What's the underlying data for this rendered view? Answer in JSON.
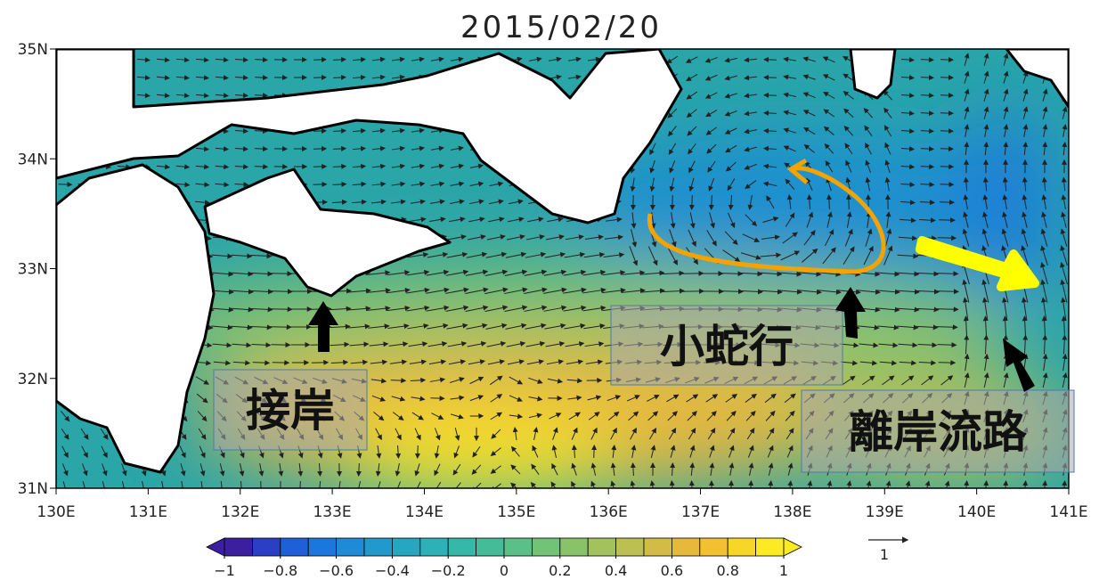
{
  "title": "2015/02/20",
  "lon_range": [
    130,
    141
  ],
  "lat_range": [
    31,
    35
  ],
  "lon_ticks": [
    {
      "value": 130,
      "label": "130E"
    },
    {
      "value": 131,
      "label": "131E"
    },
    {
      "value": 132,
      "label": "132E"
    },
    {
      "value": 133,
      "label": "133E"
    },
    {
      "value": 134,
      "label": "134E"
    },
    {
      "value": 135,
      "label": "135E"
    },
    {
      "value": 136,
      "label": "136E"
    },
    {
      "value": 137,
      "label": "137E"
    },
    {
      "value": 138,
      "label": "138E"
    },
    {
      "value": 139,
      "label": "139E"
    },
    {
      "value": 140,
      "label": "140E"
    },
    {
      "value": 141,
      "label": "141E"
    }
  ],
  "lat_ticks": [
    {
      "value": 35,
      "label": "35N"
    },
    {
      "value": 34,
      "label": "34N"
    },
    {
      "value": 33,
      "label": "33N"
    },
    {
      "value": 32,
      "label": "32N"
    },
    {
      "value": 31,
      "label": "31N"
    }
  ],
  "colorbar": {
    "range": [
      -1,
      1
    ],
    "ticks": [
      {
        "value": -1,
        "label": "−1"
      },
      {
        "value": -0.8,
        "label": "−0.8"
      },
      {
        "value": -0.6,
        "label": "−0.6"
      },
      {
        "value": -0.4,
        "label": "−0.4"
      },
      {
        "value": -0.2,
        "label": "−0.2"
      },
      0,
      0.2,
      0.4,
      0.6,
      0.8,
      1
    ],
    "colors": [
      "#3b1fa0",
      "#2b3fc4",
      "#1f5fd8",
      "#1a78dc",
      "#1d8bd6",
      "#2299cc",
      "#27a6c2",
      "#2db0b6",
      "#36b8a8",
      "#45bc98",
      "#5ac088",
      "#72c278",
      "#8ac26a",
      "#a3c25e",
      "#bcc052",
      "#d2bc46",
      "#e6b83c",
      "#f2c030",
      "#f8d628",
      "#fbeb20"
    ]
  },
  "vector_scale": 1,
  "annotations": {
    "approach": "接岸",
    "small_meander": "小蛇行",
    "offshore_path": "離岸流路"
  }
}
